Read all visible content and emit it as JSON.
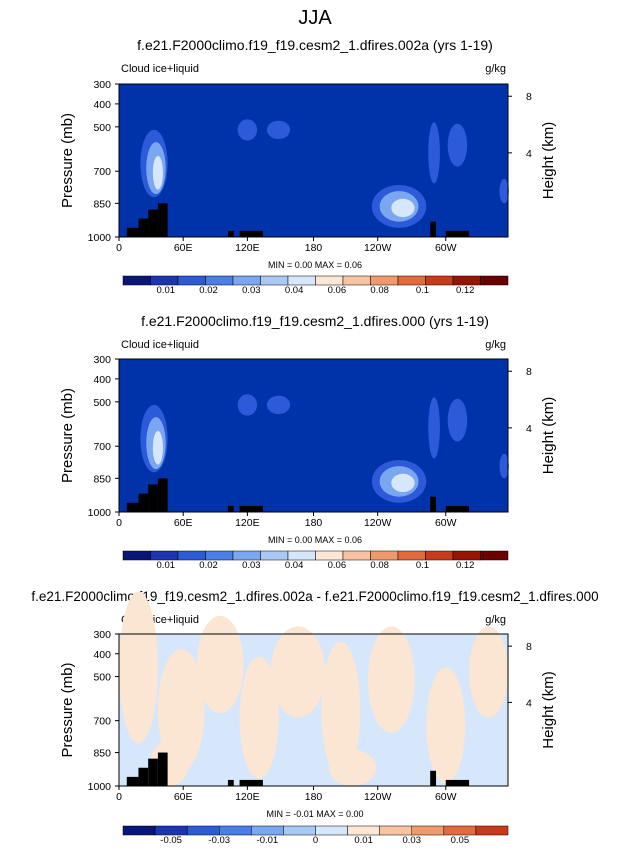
{
  "page_title": "JJA",
  "colors": {
    "background_field": "#0033aa",
    "diff_background": "#d7e7fb",
    "diff_positive": "#fbe6d3",
    "topography": "#000000"
  },
  "chart_data": [
    {
      "type": "heatmap",
      "title": "f.e21.F2000climo.f19_f19.cesm2_1.dfires.002a (yrs 1-19)",
      "left_label": "Cloud ice+liquid",
      "right_label": "g/kg",
      "ylabel": "Pressure (mb)",
      "y2label": "Height (km)",
      "y_ticks": [
        "300",
        "400",
        "500",
        "700",
        "850",
        "1000"
      ],
      "y2_ticks": [
        "8",
        "4"
      ],
      "x_ticks": [
        "0",
        "60E",
        "120E",
        "180",
        "120W",
        "60W"
      ],
      "stats": "MIN =   0.00  MAX =   0.06",
      "colorbar_labels": [
        "0.01",
        "0.02",
        "0.03",
        "0.04",
        "0.06",
        "0.08",
        "0.1",
        "0.12"
      ],
      "colorbar_colors": [
        "#0a1578",
        "#1b35b5",
        "#2c5ad9",
        "#4a7fe8",
        "#7aa7f0",
        "#a8c8f6",
        "#d6e6fb",
        "#fce7d6",
        "#f8c3a0",
        "#f09a6c",
        "#e36a3d",
        "#c83a1b",
        "#9a1405",
        "#6b0000"
      ]
    },
    {
      "type": "heatmap",
      "title": "f.e21.F2000climo.f19_f19.cesm2_1.dfires.000 (yrs 1-19)",
      "left_label": "Cloud ice+liquid",
      "right_label": "g/kg",
      "ylabel": "Pressure (mb)",
      "y2label": "Height (km)",
      "y_ticks": [
        "300",
        "400",
        "500",
        "700",
        "850",
        "1000"
      ],
      "y2_ticks": [
        "8",
        "4"
      ],
      "x_ticks": [
        "0",
        "60E",
        "120E",
        "180",
        "120W",
        "60W"
      ],
      "stats": "MIN =   0.00  MAX =   0.06",
      "colorbar_labels": [
        "0.01",
        "0.02",
        "0.03",
        "0.04",
        "0.06",
        "0.08",
        "0.1",
        "0.12"
      ],
      "colorbar_colors": [
        "#0a1578",
        "#1b35b5",
        "#2c5ad9",
        "#4a7fe8",
        "#7aa7f0",
        "#a8c8f6",
        "#d6e6fb",
        "#fce7d6",
        "#f8c3a0",
        "#f09a6c",
        "#e36a3d",
        "#c83a1b",
        "#9a1405",
        "#6b0000"
      ]
    },
    {
      "type": "heatmap",
      "title": "f.e21.F2000climo.f19_f19.cesm2_1.dfires.002a - f.e21.F2000climo.f19_f19.cesm2_1.dfires.000",
      "left_label": "Cloud ice+liquid",
      "right_label": "g/kg",
      "ylabel": "Pressure (mb)",
      "y2label": "Height (km)",
      "y_ticks": [
        "300",
        "400",
        "500",
        "700",
        "850",
        "1000"
      ],
      "y2_ticks": [
        "8",
        "4"
      ],
      "x_ticks": [
        "0",
        "60E",
        "120E",
        "180",
        "120W",
        "60W"
      ],
      "stats": "MIN =  -0.01  MAX =   0.00",
      "colorbar_labels": [
        "-0.05",
        "-0.03",
        "-0.01",
        "0",
        "0.01",
        "0.03",
        "0.05"
      ],
      "colorbar_colors": [
        "#0a1578",
        "#1b35b5",
        "#2c5ad9",
        "#4a7fe8",
        "#7aa7f0",
        "#a8c8f6",
        "#d6e6fb",
        "#fce7d6",
        "#f8c3a0",
        "#f09a6c",
        "#e36a3d",
        "#c83a1b"
      ]
    }
  ]
}
